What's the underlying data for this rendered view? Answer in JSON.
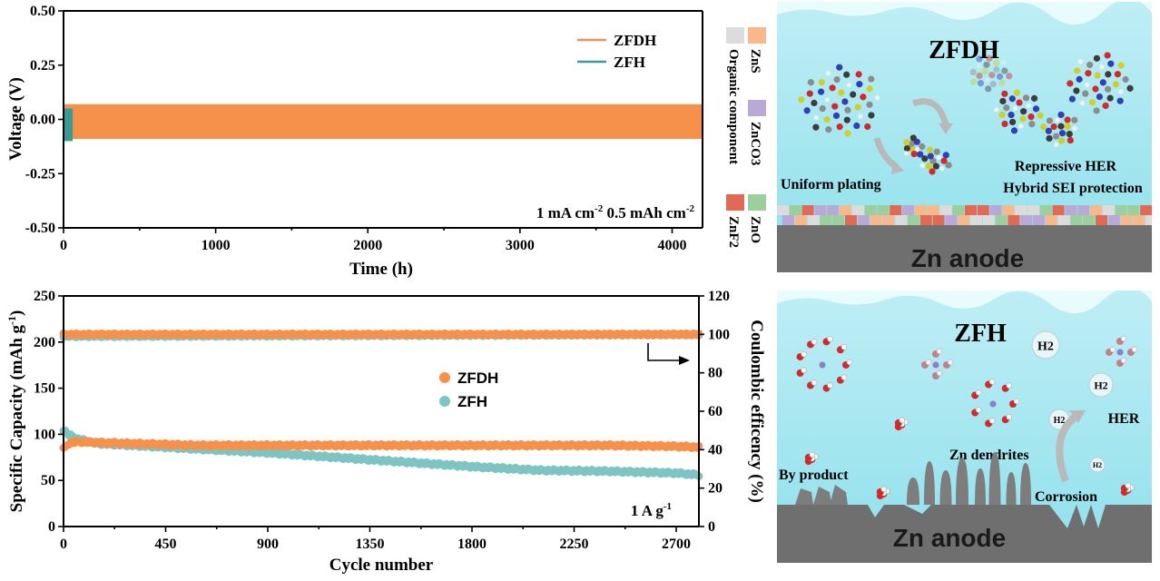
{
  "chart_data": [
    {
      "type": "line",
      "xlabel": "Time (h)",
      "ylabel": "Voltage (V)",
      "xlim": [
        0,
        4200
      ],
      "ylim": [
        -0.5,
        0.5
      ],
      "xticks": [
        "0",
        "1000",
        "2000",
        "3000",
        "4000"
      ],
      "yticks": [
        "0.50",
        "0.25",
        "0.00",
        "-0.25",
        "-0.50"
      ],
      "legend_position": "top-right",
      "annotation": "1 mA cm-2 0.5 mAh cm-2",
      "annotation_parts": [
        "1 mA cm",
        "-2",
        " 0.5 mAh cm",
        "-2"
      ],
      "series": [
        {
          "name": "ZFDH",
          "color": "#f5914a",
          "x_range": [
            0,
            4200
          ],
          "upper": 0.07,
          "lower": -0.09
        },
        {
          "name": "ZFH",
          "color": "#3a9a96",
          "x_range": [
            0,
            60
          ],
          "upper": 0.05,
          "lower": -0.1
        }
      ]
    },
    {
      "type": "scatter",
      "xlabel": "Cycle number",
      "ylabel": "Specific Capacity (mAh g-1)",
      "ylabel_parts": [
        "Specific Capacity (mAh g",
        "-1",
        ")"
      ],
      "y2label": "Coulombic efficency (%)",
      "xlim": [
        0,
        2800
      ],
      "ylim": [
        0,
        250
      ],
      "y2lim": [
        0,
        120
      ],
      "xticks": [
        "0",
        "450",
        "900",
        "1350",
        "1800",
        "2250",
        "2700"
      ],
      "yticks": [
        "250",
        "200",
        "150",
        "100",
        "50",
        "0"
      ],
      "y2ticks": [
        "120",
        "100",
        "80",
        "60",
        "40",
        "20",
        "0"
      ],
      "legend_position": "center-right",
      "annotation_parts": [
        "1 A g",
        "-1"
      ],
      "series": [
        {
          "name": "ZFDH",
          "color": "#f5914a",
          "capacity": {
            "x": [
              0,
              20,
              60,
              150,
              300,
              600,
              900,
              1200,
              1500,
              1800,
              2100,
              2400,
              2700,
              2800
            ],
            "y": [
              84,
              90,
              92,
              91,
              90,
              88,
              88,
              88,
              88,
              88,
              88,
              88,
              87,
              86
            ]
          },
          "efficiency": {
            "x": [
              0,
              2800
            ],
            "y": [
              100,
              100
            ]
          }
        },
        {
          "name": "ZFH",
          "color": "#7ec4c4",
          "capacity": {
            "x": [
              0,
              20,
              60,
              150,
              300,
              600,
              900,
              1200,
              1500,
              1800,
              2100,
              2400,
              2700,
              2800
            ],
            "y": [
              105,
              100,
              95,
              90,
              88,
              84,
              80,
              75,
              70,
              65,
              61,
              60,
              58,
              56
            ]
          },
          "efficiency": {
            "x": [
              0,
              2800
            ],
            "y": [
              99,
              100
            ]
          }
        }
      ]
    }
  ],
  "panel_top": {
    "title": "ZFDH",
    "anode": "Zn anode",
    "texts": [
      "Uniform plating",
      "Repressive HER",
      "Hybrid SEI protection"
    ],
    "legend": [
      {
        "label": "Organic component",
        "color": "#dcdcdc"
      },
      {
        "label": "ZnS",
        "color": "#f7b98b"
      },
      {
        "label": "ZnCO3",
        "color": "#b9a9d6"
      },
      {
        "label": "ZnF2",
        "color": "#e06a55"
      },
      {
        "label": "ZnO",
        "color": "#9ccf9e"
      }
    ]
  },
  "panel_bottom": {
    "title": "ZFH",
    "anode": "Zn anode",
    "texts": [
      "By product",
      "Zn dendrites",
      "HER",
      "Corrosion"
    ],
    "gas": "H2"
  }
}
